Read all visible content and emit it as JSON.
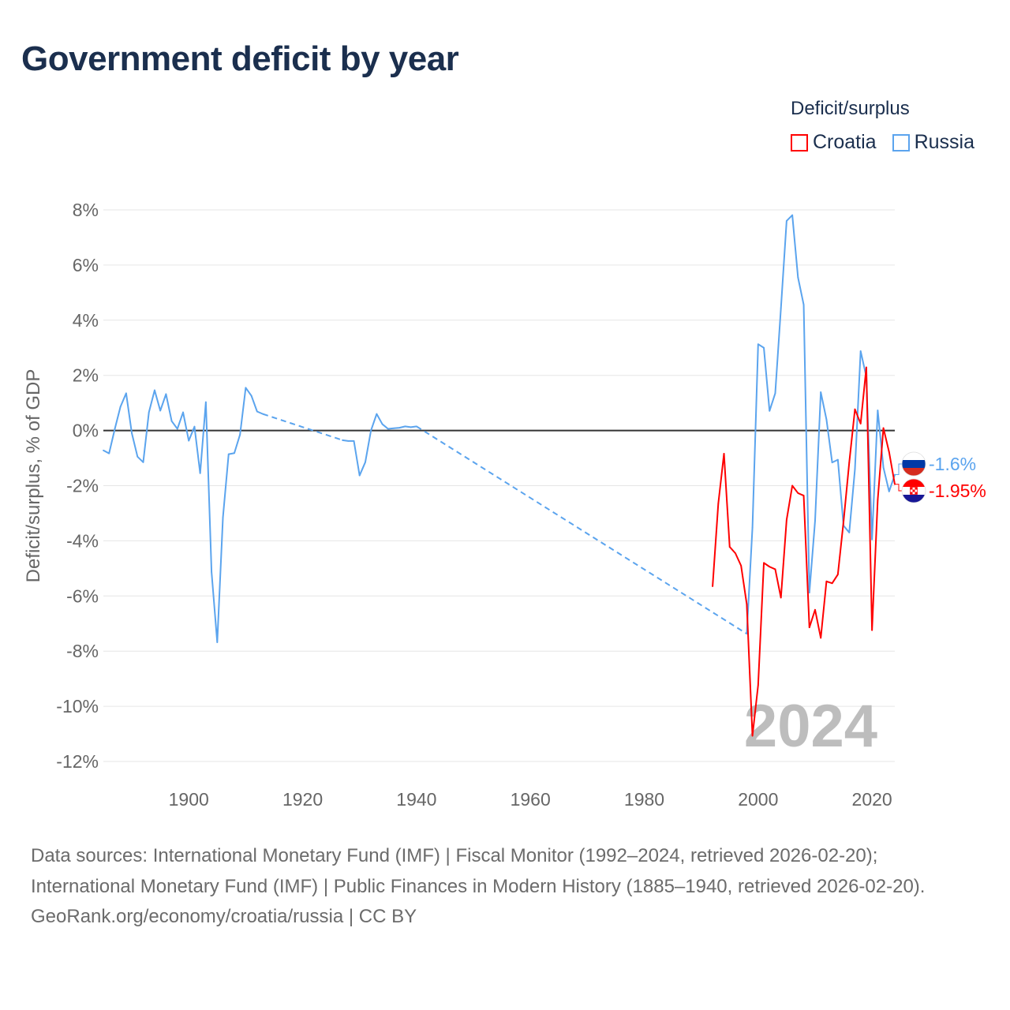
{
  "title": "Government deficit by year",
  "legend": {
    "title": "Deficit/surplus",
    "items": [
      {
        "label": "Croatia",
        "color": "#ff0000"
      },
      {
        "label": "Russia",
        "color": "#5ba4ee"
      }
    ]
  },
  "watermark_year": "2024",
  "footer": {
    "sources": "Data sources: International Monetary Fund (IMF) | Fiscal Monitor (1992–2024, retrieved 2026-02-20); International Monetary Fund (IMF) | Public Finances in Modern History (1885–1940, retrieved 2026-02-20).",
    "credit": "GeoRank.org/economy/croatia/russia | CC BY"
  },
  "chart_data": {
    "type": "line",
    "title": "Government deficit by year",
    "xlabel": "",
    "ylabel": "Deficit/surplus, % of GDP",
    "xlim": [
      1885,
      2024
    ],
    "ylim": [
      -12,
      8
    ],
    "x_ticks": [
      1900,
      1920,
      1940,
      1960,
      1980,
      2000,
      2020
    ],
    "x_tick_labels": [
      "1900",
      "1920",
      "1940",
      "1960",
      "1980",
      "2000",
      "2020"
    ],
    "y_ticks": [
      8,
      6,
      4,
      2,
      0,
      -2,
      -4,
      -6,
      -8,
      -10,
      -12
    ],
    "y_tick_labels": [
      "8%",
      "6%",
      "4%",
      "2%",
      "0%",
      "-2%",
      "-4%",
      "-6%",
      "-8%",
      "-10%",
      "-12%"
    ],
    "grid": true,
    "legend_position": "top-right",
    "series": [
      {
        "name": "Russia",
        "color": "#5ba4ee",
        "end_label": "-1.6%",
        "points": [
          [
            1885,
            -0.72
          ],
          [
            1886,
            -0.83
          ],
          [
            1887,
            0.05
          ],
          [
            1888,
            0.86
          ],
          [
            1889,
            1.35
          ],
          [
            1890,
            -0.1
          ],
          [
            1891,
            -0.95
          ],
          [
            1892,
            -1.15
          ],
          [
            1893,
            0.66
          ],
          [
            1894,
            1.46
          ],
          [
            1895,
            0.72
          ],
          [
            1896,
            1.32
          ],
          [
            1897,
            0.34
          ],
          [
            1898,
            0.06
          ],
          [
            1899,
            0.66
          ],
          [
            1900,
            -0.37
          ],
          [
            1901,
            0.14
          ],
          [
            1902,
            -1.55
          ],
          [
            1903,
            1.03
          ],
          [
            1904,
            -5.13
          ],
          [
            1905,
            -7.68
          ],
          [
            1906,
            -3.15
          ],
          [
            1907,
            -0.86
          ],
          [
            1908,
            -0.82
          ],
          [
            1909,
            -0.15
          ],
          [
            1910,
            1.55
          ],
          [
            1911,
            1.26
          ],
          [
            1912,
            0.69
          ],
          [
            1913,
            0.6
          ],
          [
            1927,
            -0.35
          ],
          [
            1928,
            -0.38
          ],
          [
            1929,
            -0.38
          ],
          [
            1930,
            -1.63
          ],
          [
            1931,
            -1.15
          ],
          [
            1932,
            0.0
          ],
          [
            1933,
            0.6
          ],
          [
            1934,
            0.23
          ],
          [
            1935,
            0.06
          ],
          [
            1936,
            0.08
          ],
          [
            1937,
            0.1
          ],
          [
            1938,
            0.15
          ],
          [
            1939,
            0.12
          ],
          [
            1940,
            0.15
          ],
          [
            1998,
            -7.37
          ],
          [
            1999,
            -3.52
          ],
          [
            2000,
            3.13
          ],
          [
            2001,
            3.0
          ],
          [
            2002,
            0.71
          ],
          [
            2003,
            1.35
          ],
          [
            2004,
            4.43
          ],
          [
            2005,
            7.6
          ],
          [
            2006,
            7.81
          ],
          [
            2007,
            5.55
          ],
          [
            2008,
            4.56
          ],
          [
            2009,
            -5.88
          ],
          [
            2010,
            -3.27
          ],
          [
            2011,
            1.39
          ],
          [
            2012,
            0.4
          ],
          [
            2013,
            -1.16
          ],
          [
            2014,
            -1.06
          ],
          [
            2015,
            -3.45
          ],
          [
            2016,
            -3.7
          ],
          [
            2017,
            -1.4
          ],
          [
            2018,
            2.88
          ],
          [
            2019,
            1.95
          ],
          [
            2020,
            -3.95
          ],
          [
            2021,
            0.73
          ],
          [
            2022,
            -1.34
          ],
          [
            2023,
            -2.21
          ],
          [
            2024,
            -1.6
          ]
        ]
      },
      {
        "name": "Croatia",
        "color": "#ff0000",
        "end_label": "-1.95%",
        "points": [
          [
            1992,
            -5.65
          ],
          [
            1993,
            -2.65
          ],
          [
            1994,
            -0.84
          ],
          [
            1995,
            -4.22
          ],
          [
            1996,
            -4.45
          ],
          [
            1997,
            -4.9
          ],
          [
            1998,
            -6.3
          ],
          [
            1999,
            -11.07
          ],
          [
            2000,
            -9.23
          ],
          [
            2001,
            -4.8
          ],
          [
            2002,
            -4.94
          ],
          [
            2003,
            -5.03
          ],
          [
            2004,
            -6.06
          ],
          [
            2005,
            -3.24
          ],
          [
            2006,
            -2.0
          ],
          [
            2007,
            -2.27
          ],
          [
            2008,
            -2.36
          ],
          [
            2009,
            -7.14
          ],
          [
            2010,
            -6.5
          ],
          [
            2011,
            -7.52
          ],
          [
            2012,
            -5.47
          ],
          [
            2013,
            -5.54
          ],
          [
            2014,
            -5.22
          ],
          [
            2015,
            -3.3
          ],
          [
            2016,
            -1.16
          ],
          [
            2017,
            0.77
          ],
          [
            2018,
            0.25
          ],
          [
            2019,
            2.29
          ],
          [
            2020,
            -7.24
          ],
          [
            2021,
            -2.52
          ],
          [
            2022,
            0.09
          ],
          [
            2023,
            -0.78
          ],
          [
            2024,
            -1.95
          ]
        ]
      }
    ]
  }
}
